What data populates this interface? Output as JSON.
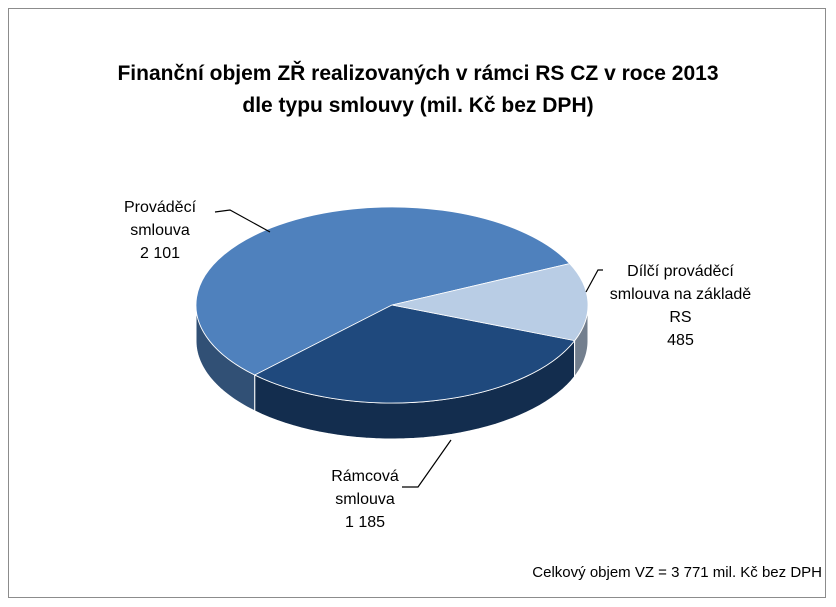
{
  "chart_data": {
    "type": "pie",
    "title": "Finanční objem ZŘ realizovaných v rámci RS CZ v roce 2013 dle typu smlouvy (mil. Kč bez DPH)",
    "categories": [
      "Prováděcí smlouva",
      "Rámcová smlouva",
      "Dílčí prováděcí smlouva na základě RS"
    ],
    "values": [
      2101,
      1185,
      485
    ],
    "value_labels": [
      "2 101",
      "1 185",
      "485"
    ],
    "colors": [
      "#4f81bd",
      "#1f497d",
      "#b9cde5"
    ],
    "annotation": "Celkový objem VZ = 3 771 mil. Kč bez DPH"
  }
}
